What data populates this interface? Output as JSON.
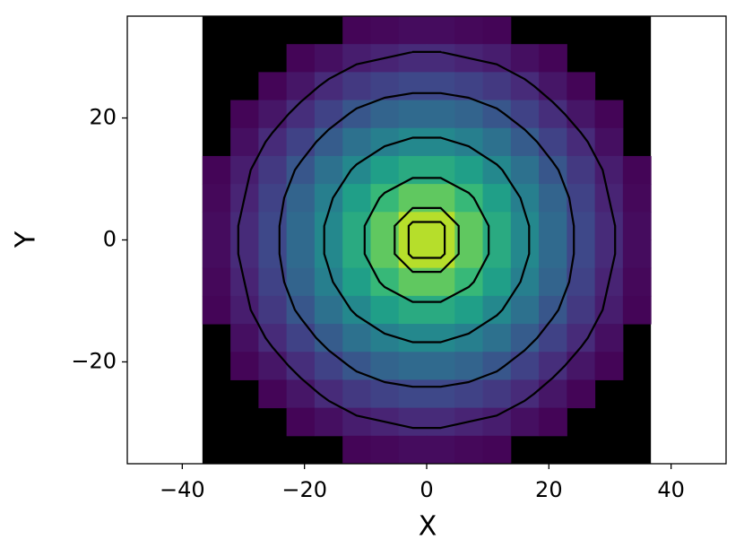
{
  "chart_data": {
    "type": "heatmap",
    "xlabel": "X",
    "ylabel": "Y",
    "xlim": [
      -49,
      49
    ],
    "ylim": [
      -36.7,
      36.7
    ],
    "x_extent": [
      -36.7,
      36.7
    ],
    "y_extent": [
      -36.7,
      36.7
    ],
    "xticks": [
      {
        "value": -40,
        "label": "−40"
      },
      {
        "value": -20,
        "label": "−20"
      },
      0,
      20,
      40
    ],
    "yticks": [
      {
        "value": -20,
        "label": "−20"
      },
      0,
      20
    ],
    "colormap": "viridis",
    "empty_color": "#000000",
    "contour_color": "#000000",
    "contour_levels": [
      0.1,
      0.25,
      0.45,
      0.65,
      0.8,
      0.87
    ],
    "z": [
      [
        null,
        null,
        null,
        null,
        null,
        0.01,
        0.02,
        0.03,
        0.03,
        0.02,
        0.01,
        null,
        null,
        null,
        null,
        null
      ],
      [
        null,
        null,
        null,
        0.01,
        0.04,
        0.08,
        0.1,
        0.12,
        0.12,
        0.1,
        0.08,
        0.04,
        0.01,
        null,
        null,
        null
      ],
      [
        null,
        null,
        0.01,
        0.06,
        0.12,
        0.17,
        0.2,
        0.22,
        0.22,
        0.2,
        0.17,
        0.12,
        0.06,
        0.01,
        null,
        null
      ],
      [
        null,
        0.01,
        0.06,
        0.13,
        0.2,
        0.27,
        0.32,
        0.34,
        0.34,
        0.32,
        0.27,
        0.2,
        0.13,
        0.06,
        0.01,
        null
      ],
      [
        null,
        0.04,
        0.12,
        0.2,
        0.29,
        0.37,
        0.43,
        0.47,
        0.47,
        0.43,
        0.37,
        0.29,
        0.2,
        0.12,
        0.04,
        null
      ],
      [
        0.01,
        0.08,
        0.17,
        0.27,
        0.37,
        0.47,
        0.56,
        0.61,
        0.61,
        0.56,
        0.47,
        0.37,
        0.27,
        0.17,
        0.08,
        0.01
      ],
      [
        0.02,
        0.1,
        0.2,
        0.32,
        0.43,
        0.56,
        0.67,
        0.75,
        0.75,
        0.67,
        0.56,
        0.43,
        0.32,
        0.2,
        0.1,
        0.02
      ],
      [
        0.03,
        0.12,
        0.22,
        0.34,
        0.47,
        0.61,
        0.75,
        0.89,
        0.89,
        0.75,
        0.61,
        0.47,
        0.34,
        0.22,
        0.12,
        0.03
      ],
      [
        0.03,
        0.12,
        0.22,
        0.34,
        0.47,
        0.61,
        0.75,
        0.89,
        0.89,
        0.75,
        0.61,
        0.47,
        0.34,
        0.22,
        0.12,
        0.03
      ],
      [
        0.02,
        0.1,
        0.2,
        0.32,
        0.43,
        0.56,
        0.67,
        0.75,
        0.75,
        0.67,
        0.56,
        0.43,
        0.32,
        0.2,
        0.1,
        0.02
      ],
      [
        0.01,
        0.08,
        0.17,
        0.27,
        0.37,
        0.47,
        0.56,
        0.61,
        0.61,
        0.56,
        0.47,
        0.37,
        0.27,
        0.17,
        0.08,
        0.01
      ],
      [
        null,
        0.04,
        0.12,
        0.2,
        0.29,
        0.37,
        0.43,
        0.47,
        0.47,
        0.43,
        0.37,
        0.29,
        0.2,
        0.12,
        0.04,
        null
      ],
      [
        null,
        0.01,
        0.06,
        0.13,
        0.2,
        0.27,
        0.32,
        0.34,
        0.34,
        0.32,
        0.27,
        0.2,
        0.13,
        0.06,
        0.01,
        null
      ],
      [
        null,
        null,
        0.01,
        0.06,
        0.12,
        0.17,
        0.2,
        0.22,
        0.22,
        0.2,
        0.17,
        0.12,
        0.06,
        0.01,
        null,
        null
      ],
      [
        null,
        null,
        null,
        0.01,
        0.04,
        0.08,
        0.1,
        0.12,
        0.12,
        0.1,
        0.08,
        0.04,
        0.01,
        null,
        null,
        null
      ],
      [
        null,
        null,
        null,
        null,
        null,
        0.01,
        0.02,
        0.03,
        0.03,
        0.02,
        0.01,
        null,
        null,
        null,
        null,
        null
      ]
    ]
  }
}
